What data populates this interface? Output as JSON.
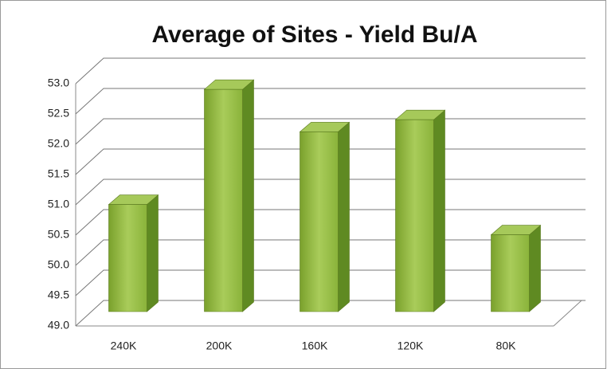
{
  "chart_data": {
    "type": "bar3d",
    "title": "Average of Sites - Yield Bu/A",
    "categories": [
      "240K",
      "200K",
      "160K",
      "120K",
      "80K"
    ],
    "values": [
      50.9,
      52.8,
      52.1,
      52.3,
      50.4
    ],
    "color": "#8db33a",
    "ylim": [
      49.0,
      53.0
    ],
    "yticks": [
      {
        "value": 49,
        "label": "49.0"
      },
      49.5,
      {
        "value": 50,
        "label": "50.0"
      },
      50.5,
      {
        "value": 51,
        "label": "51.0"
      },
      51.5,
      {
        "value": 52,
        "label": "52.0"
      },
      52.5,
      {
        "value": 53,
        "label": "53.0"
      }
    ],
    "grid": true
  }
}
